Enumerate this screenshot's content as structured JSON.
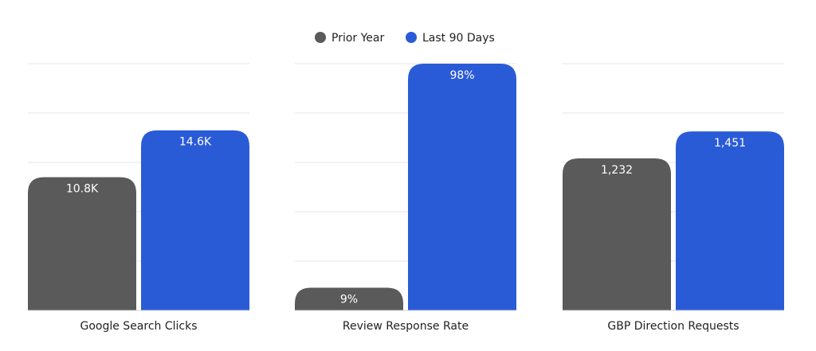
{
  "legend": {
    "position": "top-center",
    "items": [
      {
        "label": "Prior Year",
        "color": "#5a5a5a"
      },
      {
        "label": "Last 90 Days",
        "color": "#2a5bd7"
      }
    ]
  },
  "chart_data": [
    {
      "type": "bar",
      "categories": [
        "Google Search Clicks"
      ],
      "series": [
        {
          "name": "Prior Year",
          "values": [
            10800
          ],
          "labels": [
            "10.8K"
          ],
          "color": "#5a5a5a"
        },
        {
          "name": "Last 90 Days",
          "values": [
            14600
          ],
          "labels": [
            "14.6K"
          ],
          "color": "#2a5bd7"
        }
      ],
      "xlabel": "",
      "ylabel": "",
      "ylim": [
        0,
        20000
      ],
      "grid": true,
      "grid_lines": 5
    },
    {
      "type": "bar",
      "categories": [
        "Review Response Rate"
      ],
      "series": [
        {
          "name": "Prior Year",
          "values": [
            9
          ],
          "labels": [
            "9%"
          ],
          "color": "#5a5a5a"
        },
        {
          "name": "Last 90 Days",
          "values": [
            98
          ],
          "labels": [
            "98%"
          ],
          "color": "#2a5bd7"
        }
      ],
      "xlabel": "",
      "ylabel": "",
      "ylim": [
        0,
        98
      ],
      "grid": true,
      "grid_lines": 5
    },
    {
      "type": "bar",
      "categories": [
        "GBP Direction Requests"
      ],
      "series": [
        {
          "name": "Prior Year",
          "values": [
            1232
          ],
          "labels": [
            "1,232"
          ],
          "color": "#5a5a5a"
        },
        {
          "name": "Last 90 Days",
          "values": [
            1451
          ],
          "labels": [
            "1,451"
          ],
          "color": "#2a5bd7"
        }
      ],
      "xlabel": "",
      "ylabel": "",
      "ylim": [
        0,
        2000
      ],
      "grid": true,
      "grid_lines": 5
    }
  ]
}
